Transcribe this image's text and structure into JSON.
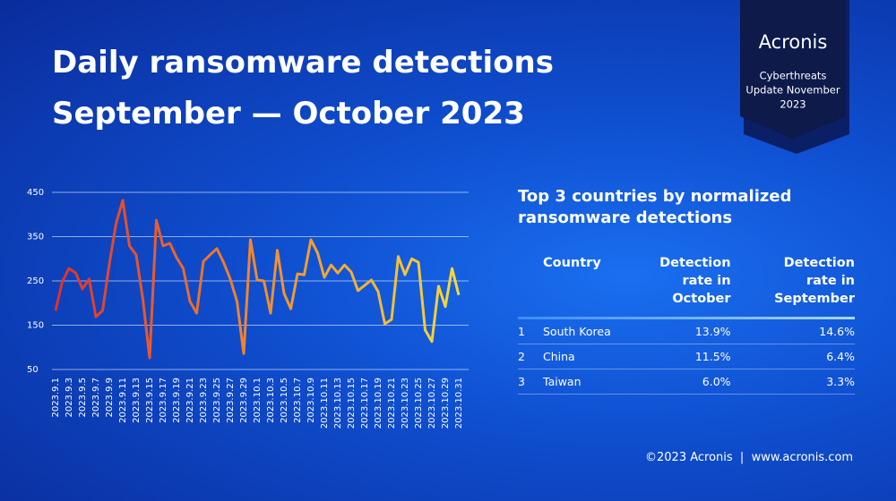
{
  "header": {
    "title": [
      "Daily ransomware detections",
      "September — October 2023"
    ]
  },
  "badge": {
    "brand": "Acronis",
    "text": [
      "Cyberthreats",
      "Update November",
      "2023"
    ]
  },
  "chart_data": {
    "type": "line",
    "categories": [
      "2023.9.1",
      null,
      "2023.9.3",
      null,
      "2023.9.5",
      null,
      "2023.9.7",
      null,
      "2023.9.9",
      null,
      "2023.9.11",
      null,
      "2023.9.13",
      null,
      "2023.9.15",
      null,
      "2023.9.17",
      null,
      "2023.9.19",
      null,
      "2023.9.21",
      null,
      "2023.9.23",
      null,
      "2023.9.25",
      null,
      "2023.9.27",
      null,
      "2023.9.29",
      null,
      "2023.10.1",
      null,
      "2023.10.3",
      null,
      "2023.10.5",
      null,
      "2023.10.7",
      null,
      "2023.10.9",
      null,
      "2023.10.11",
      null,
      "2023.10.13",
      null,
      "2023.10.15",
      null,
      "2023.10.17",
      null,
      "2023.10.19",
      null,
      "2023.10.21",
      null,
      "2023.10.23",
      null,
      "2023.10.25",
      null,
      "2023.10.27",
      null,
      "2023.10.29",
      null,
      "2023.10.31"
    ],
    "values": [
      183,
      248,
      278,
      268,
      232,
      254,
      169,
      183,
      288,
      379,
      432,
      329,
      309,
      208,
      76,
      387,
      329,
      335,
      303,
      278,
      204,
      177,
      294,
      309,
      323,
      292,
      254,
      204,
      86,
      343,
      252,
      250,
      177,
      319,
      222,
      187,
      266,
      264,
      343,
      313,
      258,
      286,
      268,
      286,
      270,
      228,
      240,
      252,
      226,
      153,
      163,
      305,
      264,
      300,
      292,
      139,
      113,
      238,
      192,
      278,
      218
    ],
    "colors": [
      "#e0302a",
      "#f08a30",
      "#f5d93a"
    ],
    "ylim": [
      50,
      450
    ],
    "yticks": [
      50,
      150,
      250,
      350,
      450
    ],
    "grid": true
  },
  "table": {
    "title": "Top 3 countries by normalized ransomware detections",
    "columns": [
      "Country",
      "Detection rate in October",
      "Detection rate in September"
    ],
    "rows": [
      [
        "1",
        "South Korea",
        "13.9%",
        "14.6%"
      ],
      [
        "2",
        "China",
        "11.5%",
        "6.4%"
      ],
      [
        "3",
        "Taiwan",
        "6.0%",
        "3.3%"
      ]
    ]
  },
  "footer": "©2023 Acronis  |  www.acronis.com"
}
